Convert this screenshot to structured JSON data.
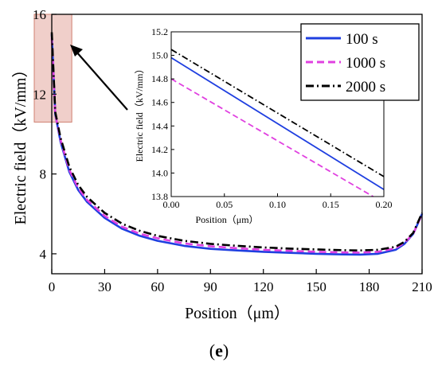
{
  "panel_label": {
    "open": "(",
    "letter": "e",
    "close": ")"
  },
  "chart_data": [
    {
      "id": "main",
      "type": "line",
      "xlabel": "Position（μm）",
      "ylabel": "Electric field（kV/mm）",
      "xlim": [
        0,
        210
      ],
      "ylim": [
        3,
        16
      ],
      "xticks": [
        0,
        30,
        60,
        90,
        120,
        150,
        180,
        210
      ],
      "yticks": [
        4,
        8,
        12,
        16
      ],
      "grid": false,
      "highlight_region": {
        "x": [
          0,
          10
        ],
        "y": [
          10.6,
          16
        ]
      },
      "series": [
        {
          "name": "100 s",
          "color": "#1f3fe0",
          "dash": "solid",
          "x": [
            0,
            2,
            5,
            10,
            15,
            20,
            30,
            40,
            50,
            60,
            75,
            90,
            105,
            120,
            135,
            150,
            165,
            175,
            185,
            195,
            200,
            205,
            208,
            210
          ],
          "y": [
            15.0,
            11.0,
            9.6,
            8.1,
            7.2,
            6.6,
            5.8,
            5.25,
            4.9,
            4.65,
            4.4,
            4.25,
            4.17,
            4.1,
            4.05,
            4.0,
            3.97,
            3.96,
            4.0,
            4.2,
            4.5,
            5.0,
            5.6,
            6.0
          ]
        },
        {
          "name": "1000 s",
          "color": "#e040e0",
          "dash": "dashed",
          "x": [
            0,
            2,
            5,
            10,
            15,
            20,
            30,
            40,
            50,
            60,
            75,
            90,
            105,
            120,
            135,
            150,
            165,
            175,
            185,
            195,
            200,
            205,
            208,
            210
          ],
          "y": [
            14.8,
            11.0,
            9.7,
            8.2,
            7.3,
            6.7,
            5.9,
            5.35,
            5.0,
            4.78,
            4.52,
            4.38,
            4.28,
            4.2,
            4.15,
            4.1,
            4.07,
            4.06,
            4.1,
            4.28,
            4.55,
            5.0,
            5.6,
            6.0
          ]
        },
        {
          "name": "2000 s",
          "color": "#000000",
          "dash": "dashdot",
          "x": [
            0,
            2,
            5,
            10,
            15,
            20,
            30,
            40,
            50,
            60,
            75,
            90,
            105,
            120,
            135,
            150,
            165,
            175,
            185,
            195,
            200,
            205,
            208,
            210
          ],
          "y": [
            15.1,
            11.1,
            9.8,
            8.35,
            7.45,
            6.85,
            6.05,
            5.5,
            5.15,
            4.9,
            4.65,
            4.5,
            4.4,
            4.32,
            4.26,
            4.22,
            4.18,
            4.17,
            4.2,
            4.35,
            4.6,
            5.05,
            5.65,
            6.05
          ]
        }
      ]
    },
    {
      "id": "inset",
      "type": "line",
      "xlabel": "Position（μm）",
      "ylabel": "Electric field（kV/mm）",
      "xlim": [
        0,
        0.2
      ],
      "ylim": [
        13.8,
        15.2
      ],
      "xticks": [
        0.0,
        0.05,
        0.1,
        0.15,
        0.2
      ],
      "xtick_labels": [
        "0.00",
        "0.05",
        "0.10",
        "0.15",
        "0.20"
      ],
      "yticks": [
        13.8,
        14.0,
        14.2,
        14.4,
        14.6,
        14.8,
        15.0,
        15.2
      ],
      "ytick_labels": [
        "13.8",
        "14.0",
        "14.2",
        "14.4",
        "14.6",
        "14.8",
        "15.0",
        "15.2"
      ],
      "grid": false,
      "legend": "top-right",
      "series": [
        {
          "name": "100 s",
          "color": "#1f3fe0",
          "dash": "solid",
          "x": [
            0,
            0.2
          ],
          "y": [
            14.98,
            13.86
          ]
        },
        {
          "name": "1000 s",
          "color": "#e040e0",
          "dash": "dashed",
          "x": [
            0,
            0.19
          ],
          "y": [
            14.8,
            13.8
          ]
        },
        {
          "name": "2000 s",
          "color": "#000000",
          "dash": "dashdot",
          "x": [
            0,
            0.2
          ],
          "y": [
            15.05,
            13.97
          ]
        }
      ]
    }
  ]
}
